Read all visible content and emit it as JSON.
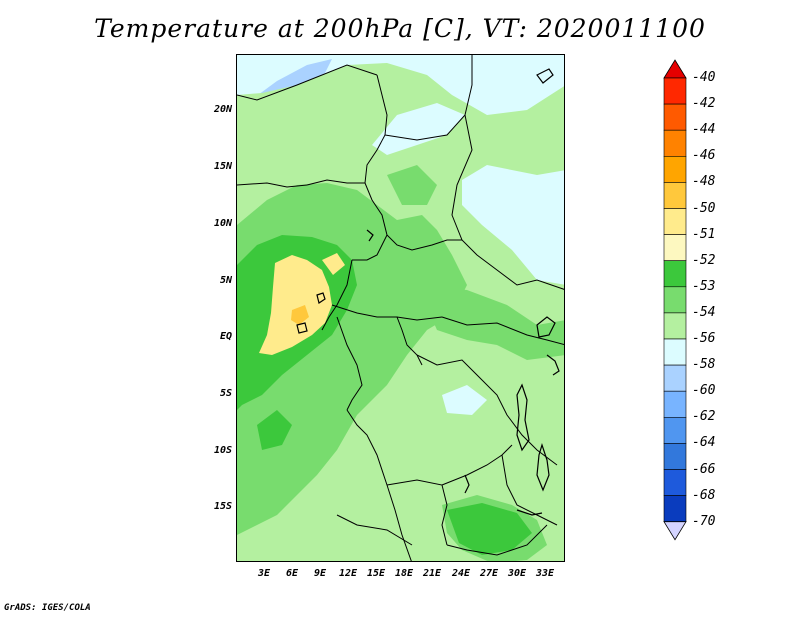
{
  "title": "Temperature at 200hPa [C], VT: 2020011100",
  "credit": "GrADS: IGES/COLA",
  "map": {
    "lat_labels": [
      "20N",
      "15N",
      "10N",
      "5N",
      "EQ",
      "5S",
      "10S",
      "15S"
    ],
    "lon_labels": [
      "3E",
      "6E",
      "9E",
      "12E",
      "15E",
      "18E",
      "21E",
      "24E",
      "27E",
      "30E",
      "33E"
    ]
  },
  "legend": {
    "labels": [
      "-40",
      "-42",
      "-44",
      "-46",
      "-48",
      "-50",
      "-51",
      "-52",
      "-53",
      "-54",
      "-56",
      "-58",
      "-60",
      "-62",
      "-64",
      "-66",
      "-68",
      "-70"
    ],
    "colors": [
      "#ff2800",
      "#ff5a00",
      "#ff8200",
      "#ffa500",
      "#ffc83c",
      "#ffeb8c",
      "#fdf8c0",
      "#3cc83c",
      "#78dc6e",
      "#b4f0a0",
      "#dcfcff",
      "#aad2ff",
      "#78b4ff",
      "#5096f0",
      "#3278dc",
      "#1e5adc",
      "#0a3cbe",
      "#000a82",
      "#0000c8"
    ]
  },
  "colors": {
    "upper_cap": "#e60000",
    "lower_cap": "#d4d4ff"
  }
}
